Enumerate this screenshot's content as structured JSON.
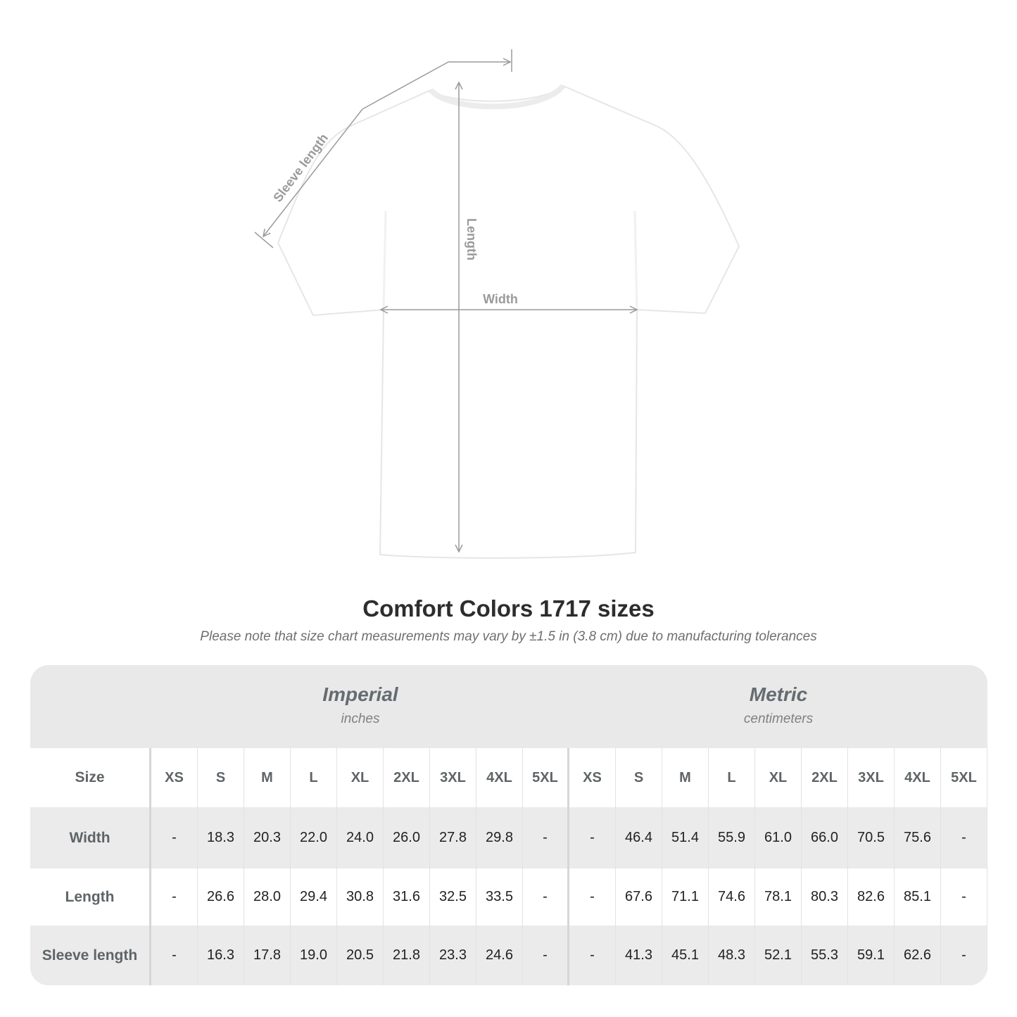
{
  "diagram": {
    "labels": {
      "sleeve": "Sleeve length",
      "length": "Length",
      "width": "Width"
    },
    "line_color": "#9a9a9a"
  },
  "title": "Comfort Colors 1717 sizes",
  "note": "Please note that size chart measurements may vary by ±1.5 in (3.8 cm) due to manufacturing tolerances",
  "table": {
    "imperial": {
      "label": "Imperial",
      "unit": "inches"
    },
    "metric": {
      "label": "Metric",
      "unit": "centimeters"
    },
    "size_label": "Size",
    "sizes": [
      "XS",
      "S",
      "M",
      "L",
      "XL",
      "2XL",
      "3XL",
      "4XL",
      "5XL"
    ],
    "rows": [
      {
        "label": "Width",
        "imperial": [
          "-",
          "18.3",
          "20.3",
          "22.0",
          "24.0",
          "26.0",
          "27.8",
          "29.8",
          "-"
        ],
        "metric": [
          "-",
          "46.4",
          "51.4",
          "55.9",
          "61.0",
          "66.0",
          "70.5",
          "75.6",
          "-"
        ]
      },
      {
        "label": "Length",
        "imperial": [
          "-",
          "26.6",
          "28.0",
          "29.4",
          "30.8",
          "31.6",
          "32.5",
          "33.5",
          "-"
        ],
        "metric": [
          "-",
          "67.6",
          "71.1",
          "74.6",
          "78.1",
          "80.3",
          "82.6",
          "85.1",
          "-"
        ]
      },
      {
        "label": "Sleeve length",
        "imperial": [
          "-",
          "16.3",
          "17.8",
          "19.0",
          "20.5",
          "21.8",
          "23.3",
          "24.6",
          "-"
        ],
        "metric": [
          "-",
          "41.3",
          "45.1",
          "48.3",
          "52.1",
          "55.3",
          "59.1",
          "62.6",
          "-"
        ]
      }
    ]
  }
}
